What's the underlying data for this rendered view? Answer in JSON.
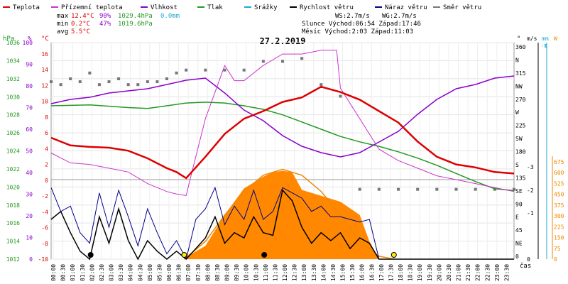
{
  "chart_data": {
    "type": "line",
    "title": "27.2.2019",
    "legend": [
      {
        "key": "temp",
        "label": "Teplota",
        "color": "#dd0000"
      },
      {
        "key": "ground",
        "label": "Přízemní teplota",
        "color": "#cc33cc"
      },
      {
        "key": "humidity",
        "label": "Vlhkost",
        "color": "#8800cc"
      },
      {
        "key": "pressure",
        "label": "Tlak",
        "color": "#229922"
      },
      {
        "key": "rain",
        "label": "Srážky",
        "color": "#22aacc"
      },
      {
        "key": "wind",
        "label": "Rychlost větru",
        "color": "#000000"
      },
      {
        "key": "gust",
        "label": "Náraz větru",
        "color": "#000088"
      },
      {
        "key": "dir",
        "label": "Směr větru",
        "color": "#777777"
      }
    ],
    "stats": {
      "max_label": "max",
      "min_label": "min",
      "avg_label": "avg",
      "max_temp": "12.4°C",
      "max_hum": "90%",
      "max_press": "1029.4hPa",
      "max_rain": "0.0mm",
      "min_temp": "0.2°C",
      "min_hum": "47%",
      "min_press": "1019.6hPa",
      "avg_temp": "5.5°C"
    },
    "info": {
      "ws": "WS:2.7m/s",
      "wg": "WG:2.7m/s",
      "sun": "Slunce Východ:06:54  Západ:17:46",
      "moon": "Měsíc  Východ:2:03   Západ:11:03"
    },
    "axes": {
      "hpa_unit": "hPa",
      "pct_unit": "%",
      "degc_unit": "°C",
      "deg_unit": "°",
      "ms_unit": "m/s",
      "mm_unit": "mm",
      "w_unit": "W",
      "time_label": "čas",
      "hpa_ticks": [
        "1036",
        "1034",
        "1032",
        "1030",
        "1028",
        "1026",
        "1024",
        "1022",
        "1020",
        "1018",
        "1016",
        "1014",
        "1012"
      ],
      "pct_ticks": [
        "100",
        "90",
        "80",
        "70",
        "60",
        "50",
        "40",
        "30",
        "20",
        "10",
        "0"
      ],
      "temp_ticks": [
        "16",
        "14",
        "12",
        "10",
        "8",
        "6",
        "4",
        "2",
        "0",
        "-2",
        "-4",
        "-6",
        "-8",
        "-10"
      ],
      "dir_ticks": [
        "360",
        "N",
        "315",
        "NW",
        "270",
        "W",
        "225",
        "SW",
        "180",
        "S",
        "135",
        "SE",
        "90",
        "E",
        "45",
        "NE",
        "0"
      ],
      "ms_ticks": [
        "0",
        "-1",
        "-2",
        "-3"
      ],
      "mm_ticks": [
        "-1",
        "-0"
      ],
      "w_ticks": [
        "675",
        "600",
        "525",
        "450",
        "375",
        "300",
        "225",
        "150",
        "75",
        "0"
      ],
      "x_labels": [
        "00:00",
        "00:30",
        "01:00",
        "01:30",
        "02:00",
        "02:30",
        "03:00",
        "03:30",
        "04:00",
        "04:30",
        "05:00",
        "05:30",
        "06:00",
        "06:30",
        "07:00",
        "07:30",
        "08:00",
        "08:30",
        "09:00",
        "09:30",
        "10:00",
        "10:30",
        "11:00",
        "11:30",
        "12:00",
        "12:30",
        "13:00",
        "13:30",
        "14:00",
        "14:30",
        "15:00",
        "15:30",
        "16:00",
        "16:30",
        "17:00",
        "17:30",
        "18:00",
        "18:30",
        "19:00",
        "19:30",
        "20:00",
        "20:30",
        "21:00",
        "21:30",
        "22:00",
        "22:30",
        "23:00",
        "23:30"
      ]
    },
    "series": {
      "temp": {
        "x": [
          0,
          1,
          2,
          3,
          4,
          5,
          6,
          6.5,
          7,
          8,
          9,
          10,
          11,
          12,
          13,
          14,
          15,
          16,
          17,
          18,
          19,
          20,
          21,
          22,
          23,
          24
        ],
        "y": [
          5.5,
          4.5,
          4.3,
          4.2,
          3.8,
          2.8,
          1.5,
          1.0,
          0.2,
          3,
          6,
          8,
          9,
          10.2,
          10.8,
          12.2,
          11.5,
          10.5,
          9,
          7.5,
          5,
          3,
          2,
          1.6,
          1,
          0.8
        ]
      },
      "ground": {
        "x": [
          0,
          1,
          2,
          3,
          4,
          5,
          6,
          6.5,
          7,
          7.3,
          8,
          9,
          9.5,
          10,
          11,
          12,
          13,
          14,
          14.8,
          15,
          16,
          17,
          18,
          19,
          20,
          21,
          22,
          23,
          24
        ],
        "y": [
          3.5,
          2.2,
          2.0,
          1.5,
          1.0,
          -0.5,
          -1.5,
          -1.8,
          -2,
          1,
          8,
          15,
          13,
          13,
          15,
          16.5,
          16.5,
          17,
          17,
          12,
          8,
          4,
          2.5,
          1.5,
          0.5,
          0,
          -0.5,
          -1,
          -1.5
        ]
      },
      "humidity": {
        "x": [
          0,
          1,
          2,
          3,
          4,
          5,
          6,
          7,
          8,
          9,
          10,
          11,
          12,
          13,
          14,
          15,
          16,
          17,
          18,
          19,
          20,
          21,
          22,
          23,
          24
        ],
        "y": [
          73,
          75,
          76,
          78,
          79,
          80,
          82,
          84,
          85,
          78,
          70,
          65,
          58,
          53,
          50,
          48,
          50,
          55,
          60,
          68,
          75,
          80,
          82,
          85,
          86
        ]
      },
      "pressure": {
        "x": [
          0,
          2,
          4,
          5,
          6,
          7,
          8,
          9,
          10,
          11,
          12,
          13,
          14,
          15,
          16,
          17,
          18,
          19,
          20,
          21,
          22,
          23,
          24
        ],
        "y": [
          1029.0,
          1029.1,
          1028.8,
          1028.7,
          1029.0,
          1029.3,
          1029.4,
          1029.3,
          1029.0,
          1028.6,
          1028.0,
          1027.2,
          1026.4,
          1025.6,
          1025.0,
          1024.5,
          1023.9,
          1023.2,
          1022.4,
          1021.5,
          1020.6,
          1019.8,
          1019.6
        ]
      },
      "dir": {
        "x": [
          0,
          0.5,
          1,
          1.5,
          2,
          2.5,
          3,
          3.5,
          4,
          4.5,
          5,
          5.5,
          6,
          6.5,
          7,
          8,
          9,
          10,
          11,
          12,
          13,
          14,
          15,
          16,
          17,
          18,
          19,
          20,
          21,
          22,
          23,
          24
        ],
        "y": [
          305,
          300,
          310,
          305,
          320,
          300,
          305,
          310,
          300,
          300,
          305,
          305,
          310,
          320,
          325,
          325,
          325,
          325,
          340,
          340,
          345,
          300,
          280,
          120,
          120,
          120,
          120,
          120,
          120,
          120,
          120,
          120
        ]
      },
      "wind": {
        "x": [
          0,
          0.5,
          1,
          1.5,
          2,
          2.5,
          3,
          3.5,
          4,
          4.5,
          5,
          5.5,
          6,
          6.5,
          7,
          7.5,
          8,
          8.5,
          9,
          9.5,
          10,
          10.5,
          11,
          11.5,
          12,
          12.5,
          13,
          13.5,
          14,
          14.5,
          15,
          15.5,
          16,
          16.5,
          17,
          18,
          19,
          20,
          21,
          22,
          23,
          24
        ],
        "y": [
          1.5,
          1.8,
          1.0,
          0.3,
          0.0,
          1.6,
          0.6,
          1.9,
          0.7,
          0.0,
          0.7,
          0.3,
          0.0,
          0.3,
          0.0,
          0.4,
          0.8,
          1.6,
          0.6,
          1.0,
          0.8,
          1.6,
          1.0,
          0.9,
          2.6,
          2.2,
          1.2,
          0.6,
          1.0,
          0.7,
          1.0,
          0.4,
          0.8,
          0.6,
          0.0,
          0.0,
          0.0,
          0.0,
          0.0,
          0.0,
          0.0,
          0.0
        ]
      },
      "gust": {
        "x": [
          0,
          0.5,
          1,
          1.5,
          2,
          2.5,
          3,
          3.5,
          4,
          4.5,
          5,
          5.5,
          6,
          6.5,
          7,
          7.5,
          8,
          8.5,
          9,
          9.5,
          10,
          10.5,
          11,
          11.5,
          12,
          12.5,
          13,
          13.5,
          14,
          14.5,
          15,
          15.5,
          16,
          16.5,
          17,
          18,
          19,
          20,
          21,
          22,
          23,
          24
        ],
        "y": [
          2.7,
          1.8,
          2.0,
          1.0,
          0.6,
          2.5,
          1.2,
          2.6,
          1.6,
          0.5,
          1.9,
          1.0,
          0.2,
          0.7,
          0.0,
          1.5,
          1.9,
          2.7,
          1.3,
          2.0,
          1.5,
          2.6,
          1.5,
          1.8,
          2.7,
          2.5,
          2.3,
          1.8,
          2.0,
          1.6,
          1.6,
          1.5,
          1.4,
          1.5,
          0.0,
          0.0,
          0.0,
          0.0,
          0.0,
          0.0,
          0.0,
          0.0
        ]
      },
      "solar": {
        "x": [
          7,
          8,
          9,
          10,
          11,
          11.5,
          12,
          12.5,
          13,
          14,
          15,
          16,
          16.5,
          17
        ],
        "y": [
          15,
          90,
          300,
          480,
          560,
          590,
          600,
          590,
          470,
          430,
          390,
          300,
          120,
          0
        ]
      },
      "solar_clear": {
        "x": [
          6.9,
          8,
          9,
          10,
          11,
          12,
          13,
          14,
          15,
          16,
          17,
          17.8
        ],
        "y": [
          0,
          120,
          300,
          460,
          570,
          610,
          570,
          460,
          300,
          120,
          20,
          0
        ]
      }
    },
    "ranges": {
      "temp": [
        -10,
        18
      ],
      "pct": [
        0,
        100
      ],
      "hpa": [
        1012,
        1036
      ],
      "dir": [
        0,
        360
      ],
      "wind_ms": [
        0,
        3
      ],
      "solar_w": [
        0,
        675
      ]
    }
  }
}
